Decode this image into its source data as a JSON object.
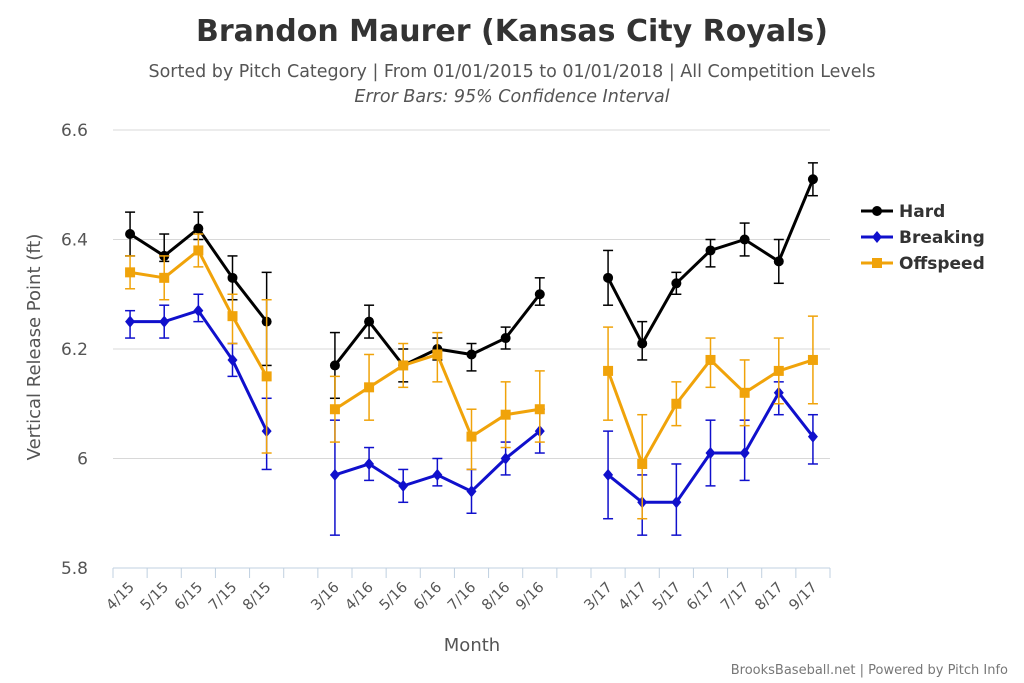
{
  "chart_data": {
    "type": "line",
    "title": "Brandon Maurer (Kansas City Royals)",
    "subtitle": "Sorted by Pitch Category | From 01/01/2015 to 01/01/2018 | All Competition Levels",
    "subtitle2": "Error Bars: 95% Confidence Interval",
    "xlabel": "Month",
    "ylabel": "Vertical Release Point (ft)",
    "ylim": [
      5.8,
      6.6
    ],
    "yticks": [
      "5.8",
      "6",
      "6.2",
      "6.4",
      "6.6"
    ],
    "grid": true,
    "legend_position": "right",
    "credits": "BrooksBaseball.net | Powered by Pitch Info",
    "categories": [
      "4/15",
      "5/15",
      "6/15",
      "7/15",
      "8/15",
      "",
      "3/16",
      "4/16",
      "5/16",
      "6/16",
      "7/16",
      "8/16",
      "9/16",
      "",
      "3/17",
      "4/17",
      "5/17",
      "6/17",
      "7/17",
      "8/17",
      "9/17"
    ],
    "series": [
      {
        "name": "Hard",
        "color": "#000000",
        "marker": "circle",
        "values": [
          6.41,
          6.37,
          6.42,
          6.33,
          6.25,
          null,
          6.17,
          6.25,
          6.17,
          6.2,
          6.19,
          6.22,
          6.3,
          null,
          6.33,
          6.21,
          6.32,
          6.38,
          6.4,
          6.36,
          6.51
        ],
        "err_low": [
          6.37,
          6.36,
          6.4,
          6.29,
          6.17,
          null,
          6.11,
          6.22,
          6.14,
          6.18,
          6.16,
          6.2,
          6.28,
          null,
          6.28,
          6.18,
          6.3,
          6.35,
          6.37,
          6.32,
          6.48
        ],
        "err_high": [
          6.45,
          6.41,
          6.45,
          6.37,
          6.34,
          null,
          6.23,
          6.28,
          6.2,
          6.22,
          6.21,
          6.24,
          6.33,
          null,
          6.38,
          6.25,
          6.34,
          6.4,
          6.43,
          6.4,
          6.54
        ]
      },
      {
        "name": "Breaking",
        "color": "#1010cc",
        "marker": "diamond",
        "values": [
          6.25,
          6.25,
          6.27,
          6.18,
          6.05,
          null,
          5.97,
          5.99,
          5.95,
          5.97,
          5.94,
          6.0,
          6.05,
          null,
          5.97,
          5.92,
          5.92,
          6.01,
          6.01,
          6.12,
          6.04
        ],
        "err_low": [
          6.22,
          6.22,
          6.25,
          6.15,
          5.98,
          null,
          5.86,
          5.96,
          5.92,
          5.95,
          5.9,
          5.97,
          6.01,
          null,
          5.89,
          5.86,
          5.86,
          5.95,
          5.96,
          6.08,
          5.99
        ],
        "err_high": [
          6.27,
          6.28,
          6.3,
          6.21,
          6.11,
          null,
          6.07,
          6.02,
          5.98,
          6.0,
          5.98,
          6.03,
          6.09,
          null,
          6.05,
          5.97,
          5.99,
          6.07,
          6.07,
          6.14,
          6.08
        ]
      },
      {
        "name": "Offspeed",
        "color": "#f0a30a",
        "marker": "square",
        "values": [
          6.34,
          6.33,
          6.38,
          6.26,
          6.15,
          null,
          6.09,
          6.13,
          6.17,
          6.19,
          6.04,
          6.08,
          6.09,
          null,
          6.16,
          5.99,
          6.1,
          6.18,
          6.12,
          6.16,
          6.18
        ],
        "err_low": [
          6.31,
          6.29,
          6.35,
          6.21,
          6.01,
          null,
          6.03,
          6.07,
          6.13,
          6.14,
          5.98,
          6.02,
          6.03,
          null,
          6.07,
          5.89,
          6.06,
          6.13,
          6.06,
          6.1,
          6.1
        ],
        "err_high": [
          6.37,
          6.37,
          6.41,
          6.3,
          6.29,
          null,
          6.15,
          6.19,
          6.21,
          6.23,
          6.09,
          6.14,
          6.16,
          null,
          6.24,
          6.08,
          6.14,
          6.22,
          6.18,
          6.22,
          6.26
        ]
      }
    ]
  }
}
